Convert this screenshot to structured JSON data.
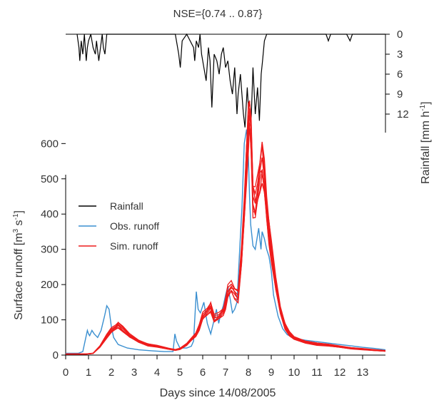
{
  "chart_data": {
    "type": "line",
    "title": "NSE={0.74 .. 0.87}",
    "xlabel": "Days since 14/08/2005",
    "ylabel": "Surface runoff [m³ s⁻¹]",
    "ylabel_parts": {
      "main": "Surface runoff [m",
      "sup1": "3",
      "mid": " s",
      "sup2": "-1",
      "end": "]"
    },
    "y2label": "Rainfall [mm h⁻¹]",
    "y2label_parts": {
      "main": "Rainfall [mm h",
      "sup": "-1",
      "end": "]"
    },
    "xlim": [
      0,
      14
    ],
    "ylim": [
      0,
      720
    ],
    "y2lim": [
      0,
      15
    ],
    "y2_inverted": true,
    "x_ticks": [
      "0",
      "1",
      "2",
      "3",
      "4",
      "5",
      "6",
      "7",
      "8",
      "9",
      "10",
      "11",
      "12",
      "13"
    ],
    "y_ticks": [
      "0",
      "100",
      "200",
      "300",
      "400",
      "500",
      "600"
    ],
    "y2_ticks": [
      "0",
      "3",
      "6",
      "9",
      "12"
    ],
    "legend": {
      "position": "left",
      "entries": [
        {
          "label": "Rainfall",
          "color": "#000000"
        },
        {
          "label": "Obs. runoff",
          "color": "#3a8fd0"
        },
        {
          "label": "Sim. runoff",
          "color": "#ee1c1c"
        }
      ]
    },
    "colors": {
      "rainfall": "#000000",
      "observed": "#3a8fd0",
      "simulated": "#ee1c1c"
    },
    "series": [
      {
        "name": "Rainfall",
        "axis": "right",
        "x": [
          0.5,
          0.58,
          0.62,
          0.68,
          0.75,
          0.82,
          0.9,
          0.95,
          1.0,
          1.1,
          1.2,
          1.3,
          1.35,
          1.45,
          1.6,
          1.65,
          1.72,
          1.8,
          2.0,
          2.2,
          2.4,
          2.7,
          3.0,
          3.5,
          4.0,
          4.5,
          4.8,
          4.95,
          5.02,
          5.1,
          5.3,
          5.6,
          5.65,
          5.72,
          5.82,
          5.88,
          5.95,
          6.05,
          6.15,
          6.25,
          6.32,
          6.4,
          6.5,
          6.62,
          6.72,
          6.82,
          6.9,
          7.0,
          7.1,
          7.2,
          7.3,
          7.4,
          7.5,
          7.55,
          7.65,
          7.78,
          7.85,
          7.95,
          8.0,
          8.05,
          8.12,
          8.2,
          8.3,
          8.4,
          8.48,
          8.56,
          8.62,
          8.7,
          8.8,
          8.9,
          9.0,
          9.2,
          9.6,
          10.0,
          10.5,
          11.0,
          11.4,
          11.5,
          11.6,
          12.0,
          12.3,
          12.45,
          12.55,
          13.0,
          13.5,
          14.0
        ],
        "y": [
          0,
          2,
          4,
          1,
          3,
          0,
          4,
          2,
          1,
          0,
          2,
          3,
          1,
          4,
          0,
          2,
          3,
          0,
          0,
          0,
          0,
          0,
          0,
          0,
          0,
          0,
          0,
          3,
          5,
          1,
          0,
          2,
          4,
          1,
          2,
          0,
          3,
          5,
          7,
          2,
          4,
          11,
          3,
          4,
          6,
          3,
          2,
          5,
          4,
          7,
          9,
          5,
          12,
          9,
          6,
          12,
          14,
          8,
          11,
          10,
          13,
          5,
          12,
          8,
          13,
          6,
          4,
          1,
          0,
          0,
          0,
          0,
          0,
          0,
          0,
          0,
          0,
          1,
          0,
          0,
          0,
          1,
          0,
          0,
          0,
          0
        ]
      },
      {
        "name": "Obs. runoff",
        "axis": "left",
        "x": [
          0,
          0.55,
          0.75,
          0.85,
          0.95,
          1.0,
          1.05,
          1.15,
          1.25,
          1.4,
          1.55,
          1.7,
          1.8,
          1.9,
          2.0,
          2.1,
          2.3,
          2.7,
          3.2,
          3.8,
          4.3,
          4.7,
          4.78,
          4.85,
          5.0,
          5.3,
          5.5,
          5.6,
          5.65,
          5.72,
          5.8,
          5.9,
          6.05,
          6.2,
          6.35,
          6.5,
          6.6,
          6.7,
          6.8,
          6.9,
          7.0,
          7.1,
          7.2,
          7.3,
          7.4,
          7.5,
          7.62,
          7.72,
          7.82,
          7.92,
          8.0,
          8.05,
          8.1,
          8.2,
          8.3,
          8.4,
          8.45,
          8.55,
          8.6,
          8.7,
          8.8,
          8.9,
          9.0,
          9.1,
          9.3,
          9.5,
          9.7,
          10.0,
          10.5,
          11.0,
          11.5,
          12.0,
          12.5,
          13.0,
          13.5,
          14.0
        ],
        "y": [
          5,
          5,
          10,
          40,
          70,
          60,
          55,
          70,
          60,
          50,
          70,
          110,
          140,
          130,
          80,
          50,
          30,
          20,
          15,
          12,
          10,
          10,
          60,
          40,
          20,
          20,
          25,
          40,
          100,
          180,
          130,
          120,
          150,
          90,
          60,
          100,
          130,
          90,
          120,
          140,
          170,
          195,
          160,
          120,
          130,
          150,
          300,
          420,
          600,
          640,
          560,
          450,
          370,
          310,
          300,
          340,
          360,
          300,
          350,
          330,
          300,
          280,
          240,
          170,
          110,
          75,
          58,
          48,
          42,
          38,
          34,
          30,
          26,
          22,
          19,
          15
        ]
      },
      {
        "name": "Sim. runoff",
        "axis": "left",
        "x": [
          0,
          0.5,
          0.9,
          1.2,
          1.5,
          1.8,
          2.0,
          2.2,
          2.3,
          2.5,
          2.8,
          3.2,
          3.6,
          4.0,
          4.5,
          4.8,
          5.0,
          5.3,
          5.5,
          5.7,
          5.85,
          6.0,
          6.2,
          6.35,
          6.5,
          6.7,
          6.9,
          7.0,
          7.1,
          7.25,
          7.4,
          7.55,
          7.7,
          7.82,
          7.92,
          8.0,
          8.05,
          8.12,
          8.2,
          8.3,
          8.4,
          8.5,
          8.6,
          8.7,
          8.8,
          8.9,
          9.0,
          9.2,
          9.4,
          9.6,
          9.8,
          10.0,
          10.5,
          11.0,
          11.5,
          12.0,
          12.5,
          13.0,
          13.5,
          14.0
        ],
        "y": [
          3,
          3,
          3,
          5,
          25,
          55,
          70,
          80,
          88,
          75,
          55,
          40,
          30,
          25,
          18,
          15,
          18,
          30,
          45,
          60,
          80,
          110,
          125,
          140,
          105,
          110,
          125,
          150,
          180,
          195,
          180,
          170,
          280,
          420,
          560,
          650,
          700,
          640,
          450,
          430,
          470,
          520,
          560,
          500,
          420,
          360,
          300,
          200,
          130,
          85,
          60,
          48,
          38,
          32,
          28,
          24,
          20,
          17,
          14,
          12
        ]
      }
    ]
  }
}
